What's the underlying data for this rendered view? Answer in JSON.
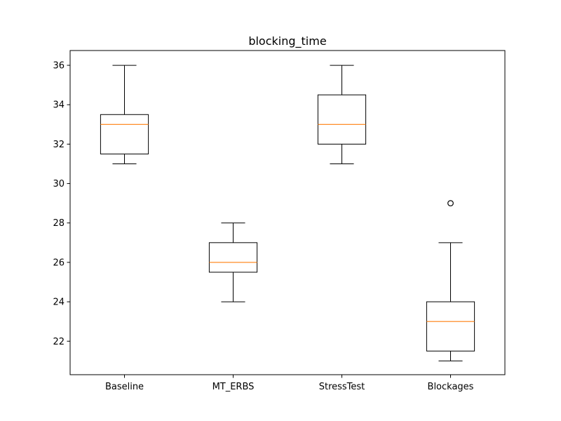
{
  "chart_data": {
    "type": "box",
    "title": "blocking_time",
    "xlabel": "",
    "ylabel": "",
    "ylim": [
      20.3,
      36.75
    ],
    "yticks": [
      22,
      24,
      26,
      28,
      30,
      32,
      34,
      36
    ],
    "grid": false,
    "categories": [
      "Baseline",
      "MT_ERBS",
      "StressTest",
      "Blockages"
    ],
    "boxes": [
      {
        "label": "Baseline",
        "whisker_low": 31,
        "q1": 31.5,
        "median": 33,
        "q3": 33.5,
        "whisker_high": 36,
        "outliers": []
      },
      {
        "label": "MT_ERBS",
        "whisker_low": 24,
        "q1": 25.5,
        "median": 26,
        "q3": 27,
        "whisker_high": 28,
        "outliers": []
      },
      {
        "label": "StressTest",
        "whisker_low": 31,
        "q1": 32,
        "median": 33,
        "q3": 34.5,
        "whisker_high": 36,
        "outliers": []
      },
      {
        "label": "Blockages",
        "whisker_low": 21,
        "q1": 21.5,
        "median": 23,
        "q3": 24,
        "whisker_high": 27,
        "outliers": [
          29
        ]
      }
    ],
    "colors": {
      "box": "#000000",
      "median": "#ff7f0e",
      "outlier_edge": "#000000"
    }
  }
}
